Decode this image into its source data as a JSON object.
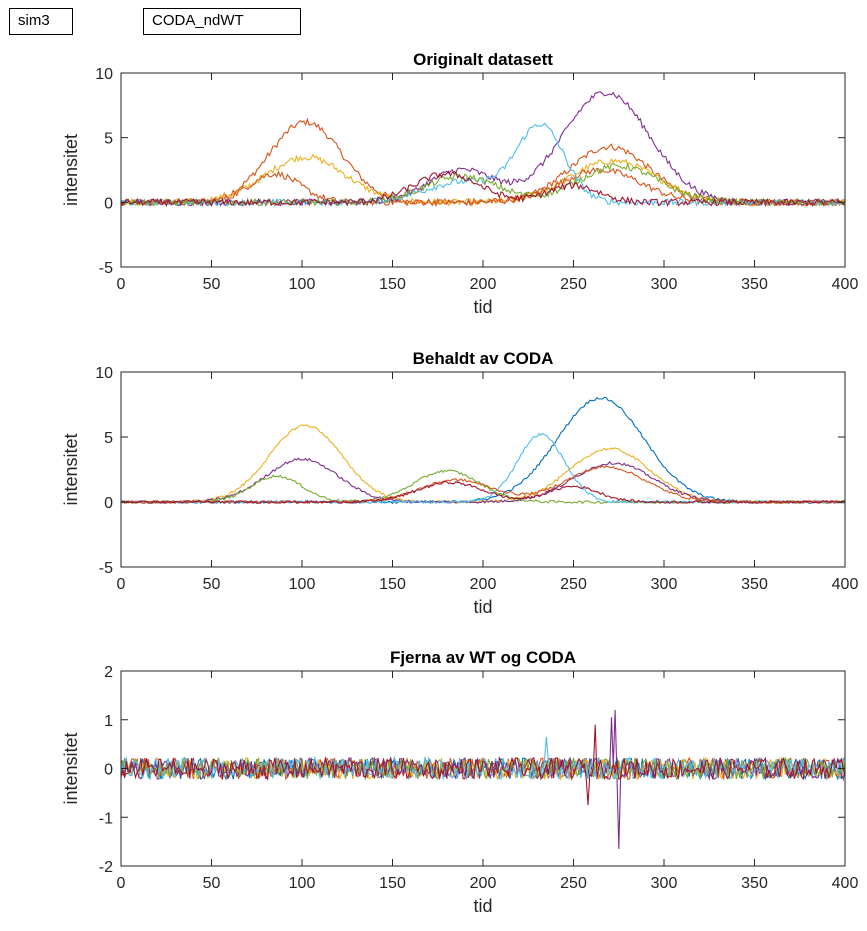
{
  "tags": {
    "left": "sim3",
    "right": "CODA_ndWT"
  },
  "series_colors": [
    "#0072BD",
    "#D95319",
    "#EDB120",
    "#7E2F8E",
    "#77AC30",
    "#4DBEEE",
    "#A2142F"
  ],
  "chart_data": [
    {
      "type": "line",
      "title": "Originalt datasett",
      "xlabel": "tid",
      "ylabel": "intensitet",
      "xlim": [
        0,
        400
      ],
      "ylim": [
        -5,
        10
      ],
      "xticks": [
        0,
        50,
        100,
        150,
        200,
        250,
        300,
        350,
        400
      ],
      "yticks": [
        -5,
        0,
        5,
        10
      ],
      "grid": false,
      "noise_amplitude": 0.25,
      "series": [
        {
          "color": "#D95319",
          "peaks": [
            [
              102,
              6.2,
              20
            ],
            [
              270,
              4.3,
              22
            ]
          ]
        },
        {
          "color": "#EDB120",
          "peaks": [
            [
              102,
              3.5,
              22
            ],
            [
              272,
              3.2,
              24
            ]
          ]
        },
        {
          "color": "#D95319",
          "peaks": [
            [
              85,
              2.2,
              14
            ],
            [
              265,
              2.5,
              22
            ]
          ]
        },
        {
          "color": "#7E2F8E",
          "peaks": [
            [
              188,
              2.5,
              18
            ],
            [
              268,
              8.5,
              24
            ]
          ]
        },
        {
          "color": "#4DBEEE",
          "peaks": [
            [
              190,
              1.6,
              22
            ],
            [
              232,
              5.8,
              13
            ]
          ]
        },
        {
          "color": "#77AC30",
          "peaks": [
            [
              188,
              2.0,
              20
            ],
            [
              275,
              2.8,
              22
            ]
          ]
        },
        {
          "color": "#A2142F",
          "peaks": [
            [
              250,
              1.3,
              14
            ],
            [
              180,
              2.2,
              18
            ]
          ]
        }
      ]
    },
    {
      "type": "line",
      "title": "Behaldt av CODA",
      "xlabel": "tid",
      "ylabel": "intensitet",
      "xlim": [
        0,
        400
      ],
      "ylim": [
        -5,
        10
      ],
      "xticks": [
        0,
        50,
        100,
        150,
        200,
        250,
        300,
        350,
        400
      ],
      "yticks": [
        -5,
        0,
        5,
        10
      ],
      "grid": false,
      "noise_amplitude": 0.1,
      "series": [
        {
          "color": "#0072BD",
          "peaks": [
            [
              265,
              8.0,
              24
            ]
          ]
        },
        {
          "color": "#EDB120",
          "peaks": [
            [
              102,
              5.9,
              20
            ],
            [
              270,
              4.1,
              22
            ]
          ]
        },
        {
          "color": "#7E2F8E",
          "peaks": [
            [
              100,
              3.3,
              20
            ],
            [
              272,
              3.0,
              22
            ]
          ]
        },
        {
          "color": "#77AC30",
          "peaks": [
            [
              86,
              2.0,
              14
            ],
            [
              180,
              2.4,
              18
            ]
          ]
        },
        {
          "color": "#4DBEEE",
          "peaks": [
            [
              232,
              5.2,
              13
            ]
          ]
        },
        {
          "color": "#D95319",
          "peaks": [
            [
              185,
              1.7,
              20
            ],
            [
              268,
              2.7,
              22
            ]
          ]
        },
        {
          "color": "#A2142F",
          "peaks": [
            [
              250,
              1.2,
              14
            ],
            [
              182,
              1.5,
              18
            ]
          ]
        }
      ]
    },
    {
      "type": "line",
      "title": "Fjerna av WT og CODA",
      "xlabel": "tid",
      "ylabel": "intensitet",
      "xlim": [
        0,
        400
      ],
      "ylim": [
        -2,
        2
      ],
      "xticks": [
        0,
        50,
        100,
        150,
        200,
        250,
        300,
        350,
        400
      ],
      "yticks": [
        -2,
        -1,
        0,
        1,
        2
      ],
      "grid": false,
      "noise_amplitude": 0.22,
      "series": [
        {
          "color": "#0072BD",
          "peaks": []
        },
        {
          "color": "#D95319",
          "peaks": []
        },
        {
          "color": "#EDB120",
          "peaks": []
        },
        {
          "color": "#7E2F8E",
          "peaks": [],
          "spikes": [
            [
              273,
              1.2
            ],
            [
              275,
              -1.65
            ],
            [
              271,
              1.05
            ]
          ]
        },
        {
          "color": "#77AC30",
          "peaks": []
        },
        {
          "color": "#4DBEEE",
          "peaks": [],
          "spikes": [
            [
              235,
              0.65
            ]
          ]
        },
        {
          "color": "#A2142F",
          "peaks": [],
          "spikes": [
            [
              258,
              -0.75
            ],
            [
              262,
              0.9
            ]
          ]
        }
      ]
    }
  ]
}
